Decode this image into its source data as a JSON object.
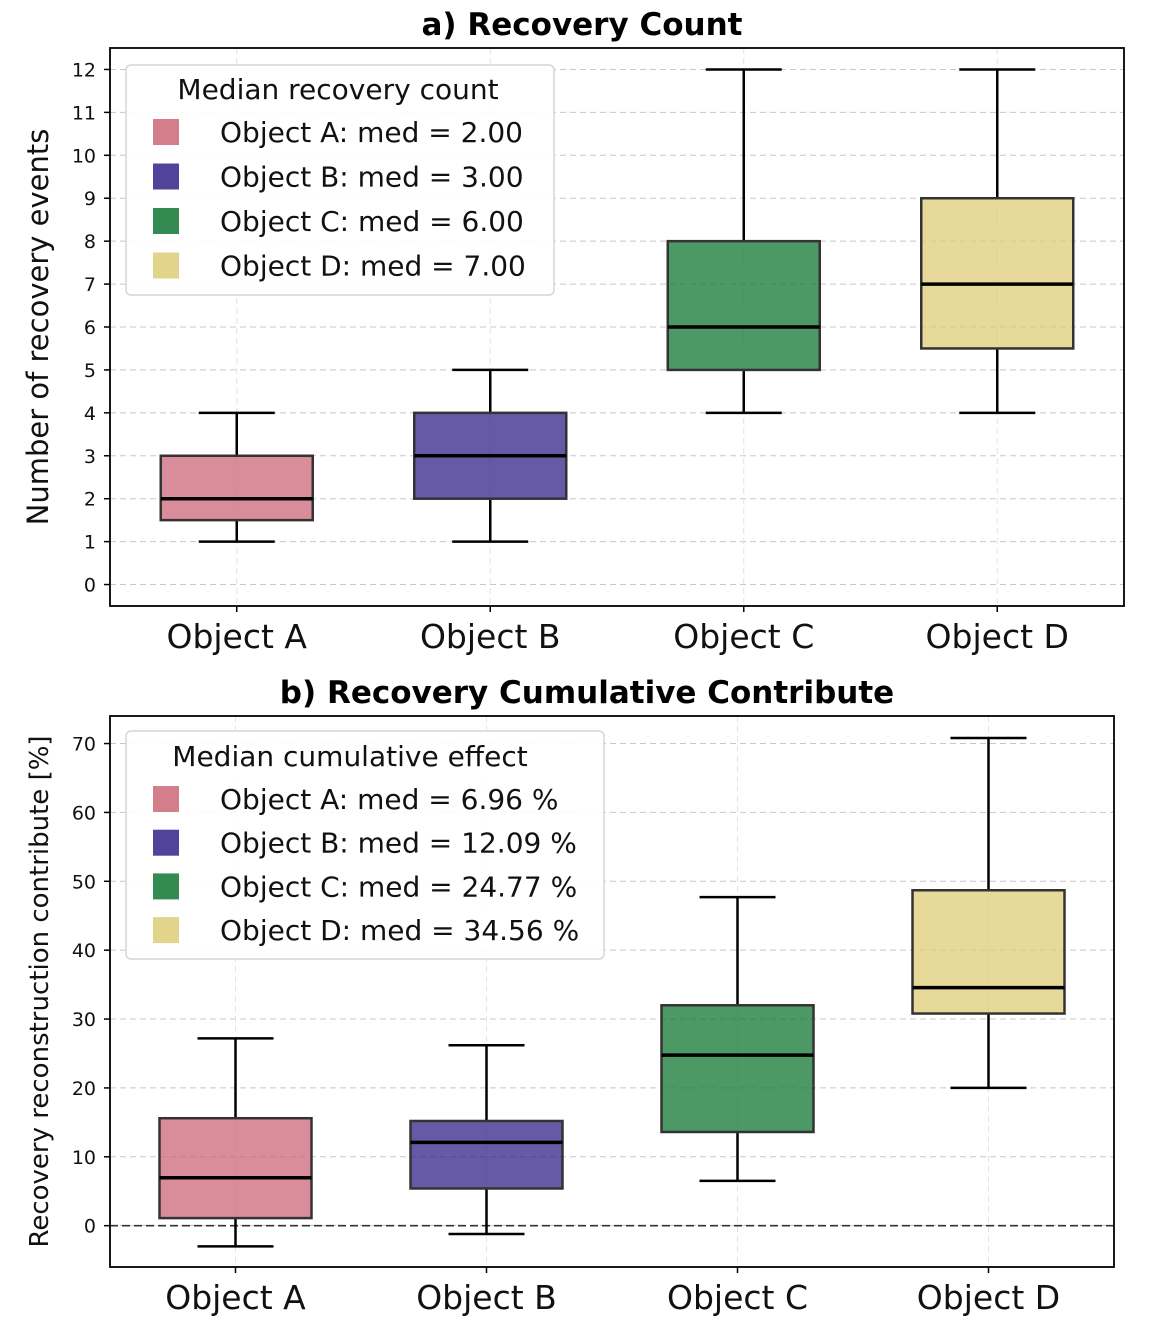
{
  "chart_data": [
    {
      "type": "box",
      "title": "a) Recovery Count",
      "xlabel": "",
      "ylabel": "Number of recovery events",
      "ylim": [
        -0.5,
        12.5
      ],
      "yticks": [
        0,
        1,
        2,
        3,
        4,
        5,
        6,
        7,
        8,
        9,
        10,
        11,
        12
      ],
      "grid": true,
      "legend_position": "top-left",
      "legend_title": "Median recovery count",
      "categories": [
        "Object A",
        "Object B",
        "Object C",
        "Object D"
      ],
      "boxes": [
        {
          "name": "Object A",
          "color": "#cc6677",
          "whisker_low": 1,
          "q1": 1.5,
          "median": 2,
          "q3": 3,
          "whisker_high": 4,
          "legend": "Object A: med = 2.00"
        },
        {
          "name": "Object B",
          "color": "#332288",
          "whisker_low": 1,
          "q1": 2,
          "median": 3,
          "q3": 4,
          "whisker_high": 5,
          "legend": "Object B: med = 3.00"
        },
        {
          "name": "Object C",
          "color": "#117733",
          "whisker_low": 4,
          "q1": 5,
          "median": 6,
          "q3": 8,
          "whisker_high": 12,
          "legend": "Object C: med = 6.00"
        },
        {
          "name": "Object D",
          "color": "#ddcc77",
          "whisker_low": 4,
          "q1": 5.5,
          "median": 7,
          "q3": 9,
          "whisker_high": 12,
          "legend": "Object D: med = 7.00"
        }
      ]
    },
    {
      "type": "box",
      "title": "b) Recovery Cumulative Contribute",
      "xlabel": "",
      "ylabel": "Recovery reconstruction contribute [%]",
      "ylim": [
        -6,
        74
      ],
      "yticks": [
        0,
        10,
        20,
        30,
        40,
        50,
        60,
        70
      ],
      "grid": true,
      "reference_line": 0,
      "legend_position": "top-left",
      "legend_title": "Median cumulative effect",
      "categories": [
        "Object A",
        "Object B",
        "Object C",
        "Object D"
      ],
      "boxes": [
        {
          "name": "Object A",
          "color": "#cc6677",
          "whisker_low": -3,
          "q1": 1.1,
          "median": 6.96,
          "q3": 15.6,
          "whisker_high": 27.2,
          "legend": "Object A: med = 6.96 %"
        },
        {
          "name": "Object B",
          "color": "#332288",
          "whisker_low": -1.2,
          "q1": 5.4,
          "median": 12.09,
          "q3": 15.2,
          "whisker_high": 26.2,
          "legend": "Object B: med = 12.09 %"
        },
        {
          "name": "Object C",
          "color": "#117733",
          "whisker_low": 6.5,
          "q1": 13.6,
          "median": 24.77,
          "q3": 32.0,
          "whisker_high": 47.7,
          "legend": "Object C: med = 24.77 %"
        },
        {
          "name": "Object D",
          "color": "#ddcc77",
          "whisker_low": 20.0,
          "q1": 30.8,
          "median": 34.56,
          "q3": 48.7,
          "whisker_high": 70.8,
          "legend": "Object D: med = 34.56 %"
        }
      ]
    }
  ]
}
